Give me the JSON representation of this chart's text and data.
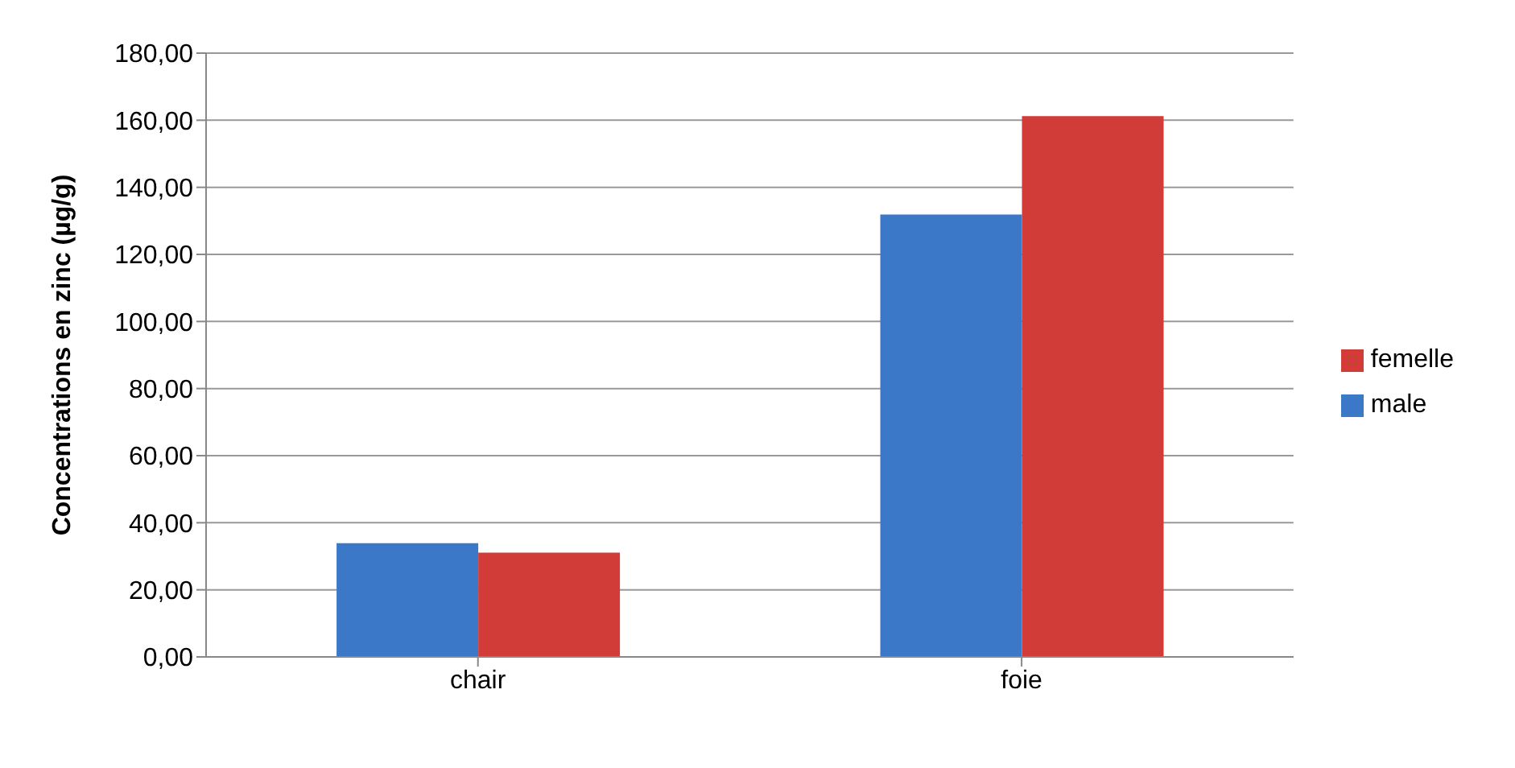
{
  "chart_data": {
    "type": "bar",
    "ylabel": "Concentrations en zinc (µg/g)",
    "categories": [
      "chair",
      "foie"
    ],
    "series": [
      {
        "name": "male",
        "color": "#3b78c8",
        "values": [
          33.9,
          131.9
        ]
      },
      {
        "name": "femelle",
        "color": "#d23c38",
        "values": [
          31.1,
          161.2
        ]
      }
    ],
    "ylim": [
      0,
      180
    ],
    "yticks": [
      {
        "value": 0,
        "label": "0,00"
      },
      {
        "value": 20,
        "label": "20,00"
      },
      {
        "value": 40,
        "label": "40,00"
      },
      {
        "value": 60,
        "label": "60,00"
      },
      {
        "value": 80,
        "label": "80,00"
      },
      {
        "value": 100,
        "label": "100,00"
      },
      {
        "value": 120,
        "label": "120,00"
      },
      {
        "value": 140,
        "label": "140,00"
      },
      {
        "value": 160,
        "label": "160,00"
      },
      {
        "value": 180,
        "label": "180,00"
      }
    ],
    "grid": "y",
    "legend": "right"
  }
}
